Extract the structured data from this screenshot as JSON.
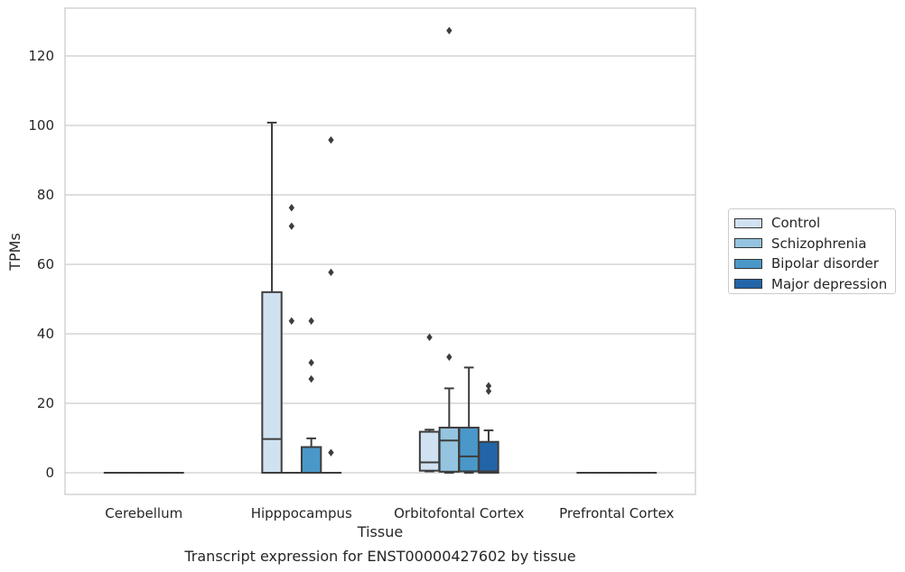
{
  "chart_data": {
    "type": "box",
    "title": "Transcript expression for ENST00000427602 by tissue",
    "xlabel": "Tissue",
    "ylabel": "TPMs",
    "ylim": [
      -6,
      134
    ],
    "yticks": [
      0,
      20,
      40,
      60,
      80,
      100,
      120
    ],
    "grid": "horizontal",
    "legend_position": "right",
    "categories": [
      "Cerebellum",
      "Hipppocampus",
      "Orbitofontal Cortex",
      "Prefrontal Cortex"
    ],
    "series": [
      {
        "name": "Control",
        "color": "#d0e1f2",
        "boxes": [
          {
            "min": 0,
            "q1": 0,
            "median": 0,
            "q3": 0,
            "max": 0,
            "outliers": []
          },
          {
            "min": 0,
            "q1": 0,
            "median": 9.7,
            "q3": 52,
            "max": 100.8,
            "outliers": []
          },
          {
            "min": 0.4,
            "q1": 0.6,
            "median": 3,
            "q3": 11.8,
            "max": 12.4,
            "outliers": [
              39
            ]
          },
          {
            "min": 0,
            "q1": 0,
            "median": 0,
            "q3": 0,
            "max": 0,
            "outliers": []
          }
        ]
      },
      {
        "name": "Schizophrenia",
        "color": "#94c4df",
        "boxes": [
          {
            "min": 0,
            "q1": 0,
            "median": 0,
            "q3": 0,
            "max": 0,
            "outliers": []
          },
          {
            "min": 0,
            "q1": 0,
            "median": 0,
            "q3": 0,
            "max": 0,
            "outliers": [
              43.7,
              71,
              76.3
            ]
          },
          {
            "min": 0,
            "q1": 0.3,
            "median": 9.3,
            "q3": 13,
            "max": 24.3,
            "outliers": [
              33.3,
              127.3
            ]
          },
          {
            "min": 0,
            "q1": 0,
            "median": 0,
            "q3": 0,
            "max": 0,
            "outliers": []
          }
        ]
      },
      {
        "name": "Bipolar disorder",
        "color": "#4a98c9",
        "boxes": [
          {
            "min": 0,
            "q1": 0,
            "median": 0,
            "q3": 0,
            "max": 0,
            "outliers": []
          },
          {
            "min": 0,
            "q1": 0,
            "median": 0,
            "q3": 7.4,
            "max": 9.9,
            "outliers": [
              27,
              31.7,
              43.7
            ]
          },
          {
            "min": 0,
            "q1": 0.4,
            "median": 4.7,
            "q3": 13,
            "max": 30.3,
            "outliers": []
          },
          {
            "min": 0,
            "q1": 0,
            "median": 0,
            "q3": 0,
            "max": 0,
            "outliers": []
          }
        ]
      },
      {
        "name": "Major depression",
        "color": "#2264a8",
        "boxes": [
          {
            "min": 0,
            "q1": 0,
            "median": 0,
            "q3": 0,
            "max": 0,
            "outliers": []
          },
          {
            "min": 0,
            "q1": 0,
            "median": 0,
            "q3": 0,
            "max": 0,
            "outliers": [
              5.8,
              57.7,
              95.8
            ]
          },
          {
            "min": 0,
            "q1": 0,
            "median": 0.4,
            "q3": 8.9,
            "max": 12.2,
            "outliers": [
              23.5,
              25
            ]
          },
          {
            "min": 0,
            "q1": 0,
            "median": 0,
            "q3": 0,
            "max": 0,
            "outliers": []
          }
        ]
      }
    ]
  }
}
